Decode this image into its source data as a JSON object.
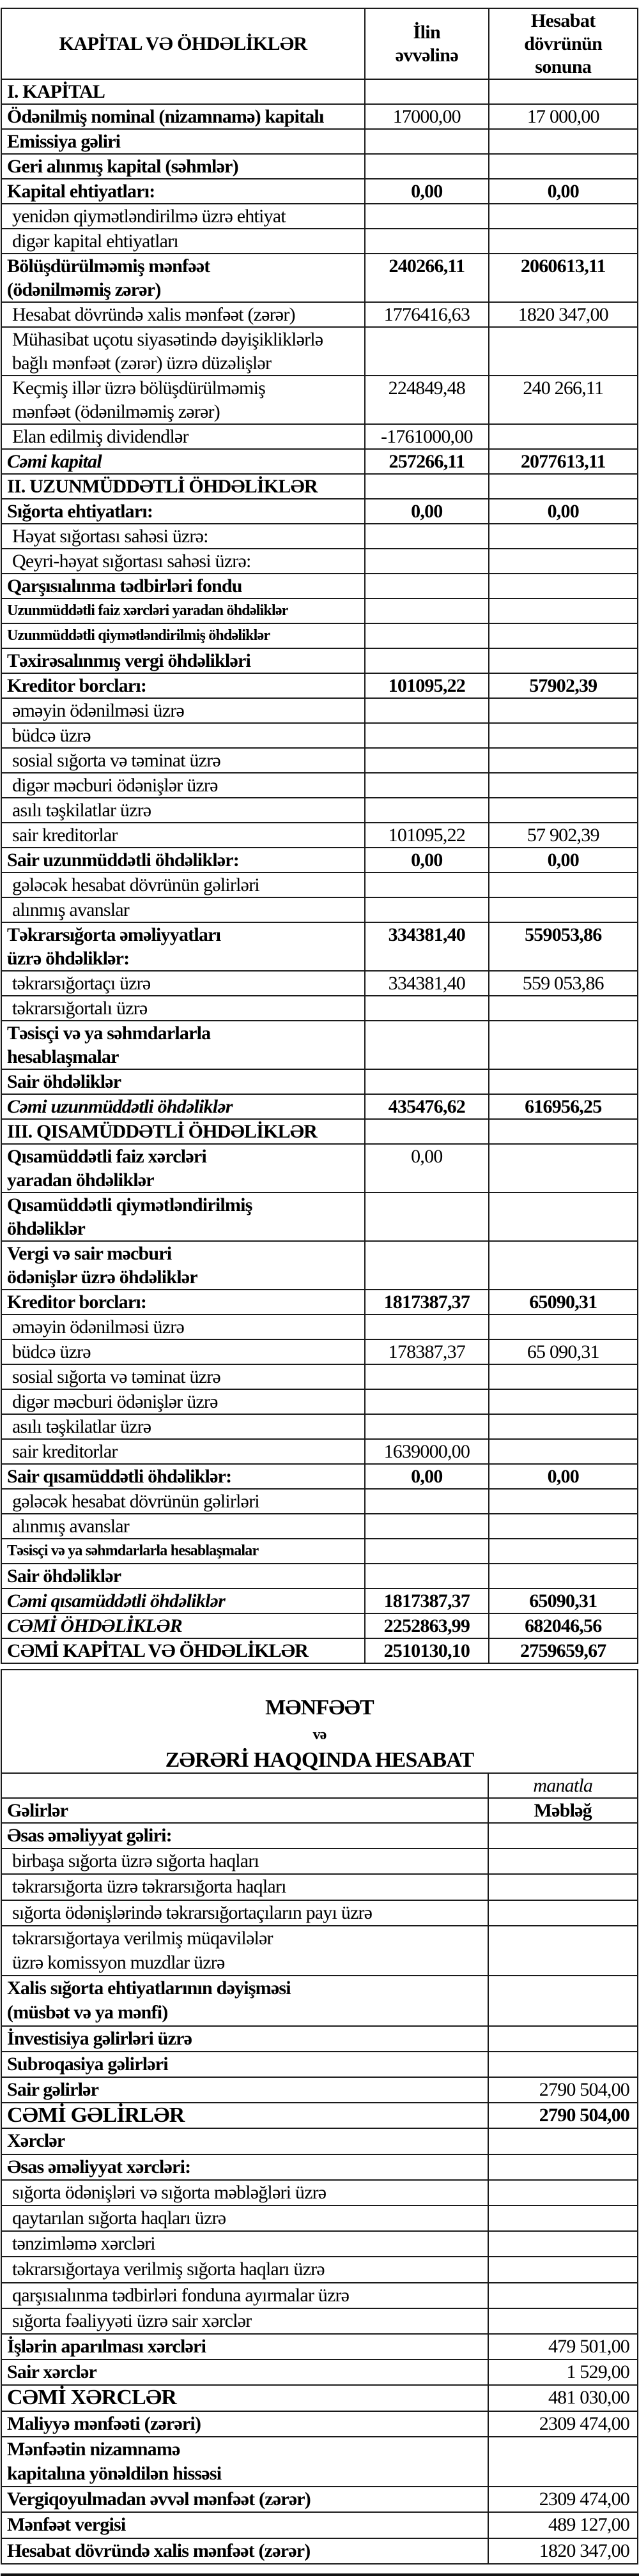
{
  "balance": {
    "header": {
      "title": "KAPİTAL VƏ ÖHDƏLİKLƏR",
      "col1": "İlin\nəvvəlinə",
      "col2": "Hesabat\ndövrünün\nsonuna"
    },
    "rows": [
      {
        "label": "I. KAPİTAL",
        "v1": "",
        "v2": "",
        "style": "section"
      },
      {
        "label": "Ödənilmiş nominal (nizamnamə) kapitalı",
        "v1": "17000,00",
        "v2": "17 000,00",
        "style": "bold-label"
      },
      {
        "label": "Emissiya gəliri",
        "v1": "",
        "v2": "",
        "style": "bold"
      },
      {
        "label": "Geri alınmış kapital (səhmlər)",
        "v1": "",
        "v2": "",
        "style": "bold"
      },
      {
        "label": "Kapital ehtiyatları:",
        "v1": "0,00",
        "v2": "0,00",
        "style": "bold"
      },
      {
        "label": "yenidən qiymətləndirilmə üzrə ehtiyat",
        "v1": "",
        "v2": "",
        "style": "sub"
      },
      {
        "label": "digər kapital ehtiyatları",
        "v1": "",
        "v2": "",
        "style": "sub"
      },
      {
        "label": "Bölüşdürülməmiş mənfəət\n(ödənilməmiş zərər)",
        "v1": "240266,11",
        "v2": "2060613,11",
        "style": "bold"
      },
      {
        "label": "Hesabat dövründə xalis mənfəət (zərər)",
        "v1": "1776416,63",
        "v2": "1820 347,00",
        "style": "sub"
      },
      {
        "label": "Mühasibat uçotu siyasətində dəyişikliklərlə\nbağlı mənfəət (zərər) üzrə düzəlişlər",
        "v1": "",
        "v2": "",
        "style": "sub"
      },
      {
        "label": "Keçmiş illər üzrə bölüşdürülməmiş\nmənfəət (ödənilməmiş zərər)",
        "v1": "224849,48",
        "v2": "240 266,11",
        "style": "sub"
      },
      {
        "label": "Elan edilmiş dividendlər",
        "v1": "-1761000,00",
        "v2": "",
        "style": "sub"
      },
      {
        "label": "Cəmi kapital",
        "v1": "257266,11",
        "v2": "2077613,11",
        "style": "italic"
      },
      {
        "label": "II. UZUNMÜDDƏTLİ ÖHDƏLİKLƏR",
        "v1": "",
        "v2": "",
        "style": "section"
      },
      {
        "label": "Sığorta ehtiyatları:",
        "v1": "0,00",
        "v2": "0,00",
        "style": "bold"
      },
      {
        "label": "Həyat sığortası sahəsi üzrə:",
        "v1": "",
        "v2": "",
        "style": "sub"
      },
      {
        "label": "Qeyri-həyat sığortası sahəsi üzrə:",
        "v1": "",
        "v2": "",
        "style": "sub"
      },
      {
        "label": "Qarşısıalınma tədbirləri fondu",
        "v1": "",
        "v2": "",
        "style": "bold"
      },
      {
        "label": "Uzunmüddətli faiz xərcləri yaradan öhdəliklər",
        "v1": "",
        "v2": "",
        "style": "bold small"
      },
      {
        "label": "Uzunmüddətli qiymətləndirilmiş öhdəliklər",
        "v1": "",
        "v2": "",
        "style": "bold small"
      },
      {
        "label": "Təxirəsalınmış vergi öhdəlikləri",
        "v1": "",
        "v2": "",
        "style": "bold"
      },
      {
        "label": "Kreditor borcları:",
        "v1": "101095,22",
        "v2": "57902,39",
        "style": "bold"
      },
      {
        "label": "əməyin ödənilməsi üzrə",
        "v1": "",
        "v2": "",
        "style": "sub"
      },
      {
        "label": "büdcə üzrə",
        "v1": "",
        "v2": "",
        "style": "sub"
      },
      {
        "label": "sosial sığorta və təminat üzrə",
        "v1": "",
        "v2": "",
        "style": "sub"
      },
      {
        "label": "digər məcburi ödənişlər üzrə",
        "v1": "",
        "v2": "",
        "style": "sub"
      },
      {
        "label": "asılı təşkilatlar üzrə",
        "v1": "",
        "v2": "",
        "style": "sub"
      },
      {
        "label": "sair kreditorlar",
        "v1": "101095,22",
        "v2": "57 902,39",
        "style": "sub"
      },
      {
        "label": "Sair uzunmüddətli öhdəliklər:",
        "v1": "0,00",
        "v2": "0,00",
        "style": "bold"
      },
      {
        "label": "gələcək hesabat dövrünün gəlirləri",
        "v1": "",
        "v2": "",
        "style": "sub"
      },
      {
        "label": "alınmış avanslar",
        "v1": "",
        "v2": "",
        "style": "sub"
      },
      {
        "label": "Təkrarsığorta əməliyyatları\n üzrə öhdəliklər:",
        "v1": "334381,40",
        "v2": "559053,86",
        "style": "bold"
      },
      {
        "label": "təkrarsığortaçı üzrə",
        "v1": "334381,40",
        "v2": "559 053,86",
        "style": "sub"
      },
      {
        "label": "təkrarsığortalı üzrə",
        "v1": "",
        "v2": "",
        "style": "sub"
      },
      {
        "label": "Təsisçi və ya səhmdarlarla\nhesablaşmalar",
        "v1": "",
        "v2": "",
        "style": "bold"
      },
      {
        "label": "Sair öhdəliklər",
        "v1": "",
        "v2": "",
        "style": "bold"
      },
      {
        "label": "Cəmi uzunmüddətli öhdəliklər",
        "v1": "435476,62",
        "v2": "616956,25",
        "style": "italic"
      },
      {
        "label": "III. QISAMÜDDƏTLİ ÖHDƏLİKLƏR",
        "v1": "",
        "v2": "",
        "style": "section"
      },
      {
        "label": "Qısamüddətli faiz xərcləri\n yaradan öhdəliklər",
        "v1": "0,00",
        "v2": "",
        "style": "bold-label"
      },
      {
        "label": "Qısamüddətli qiymətləndirilmiş\nöhdəliklər",
        "v1": "",
        "v2": "",
        "style": "bold"
      },
      {
        "label": "Vergi və sair məcburi\nödənişlər üzrə öhdəliklər",
        "v1": "",
        "v2": "",
        "style": "bold"
      },
      {
        "label": "Kreditor borcları:",
        "v1": "1817387,37",
        "v2": "65090,31",
        "style": "bold"
      },
      {
        "label": "əməyin ödənilməsi üzrə",
        "v1": "",
        "v2": "",
        "style": "sub"
      },
      {
        "label": "büdcə üzrə",
        "v1": "178387,37",
        "v2": "65 090,31",
        "style": "sub"
      },
      {
        "label": "sosial sığorta və təminat üzrə",
        "v1": "",
        "v2": "",
        "style": "sub"
      },
      {
        "label": "digər məcburi ödənişlər üzrə",
        "v1": "",
        "v2": "",
        "style": "sub"
      },
      {
        "label": "asılı təşkilatlar üzrə",
        "v1": "",
        "v2": "",
        "style": "sub"
      },
      {
        "label": "sair kreditorlar",
        "v1": "1639000,00",
        "v2": "",
        "style": "sub"
      },
      {
        "label": "Sair qısamüddətli öhdəliklər:",
        "v1": "0,00",
        "v2": "0,00",
        "style": "bold"
      },
      {
        "label": "gələcək hesabat dövrünün gəlirləri",
        "v1": "",
        "v2": "",
        "style": "sub"
      },
      {
        "label": "alınmış avanslar",
        "v1": "",
        "v2": "",
        "style": "sub"
      },
      {
        "label": "Təsisçi və ya səhmdarlarla hesablaşmalar",
        "v1": "",
        "v2": "",
        "style": "bold small"
      },
      {
        "label": "Sair öhdəliklər",
        "v1": "",
        "v2": "",
        "style": "bold"
      },
      {
        "label": "Cəmi qısamüddətli öhdəliklər",
        "v1": "1817387,37",
        "v2": "65090,31",
        "style": "italic"
      },
      {
        "label": "CƏMİ ÖHDƏLİKLƏR",
        "v1": "2252863,99",
        "v2": "682046,56",
        "style": "italic"
      },
      {
        "label": "CƏMİ KAPİTAL VƏ ÖHDƏLİKLƏR",
        "v1": "2510130,10",
        "v2": "2759659,67",
        "style": "bold"
      }
    ]
  },
  "income": {
    "title_main": "MƏNFƏƏT",
    "title_and": "və",
    "title_rest": "ZƏRƏRİ HAQQINDA HESABAT",
    "unit": "manatla",
    "col_label": "Gəlirlər",
    "col_amount": "Məbləğ",
    "rows": [
      {
        "label": "Əsas əməliyyat gəliri:",
        "value": "",
        "style": "bold"
      },
      {
        "label": "birbaşa sığorta üzrə sığorta haqları",
        "value": "",
        "style": "sub"
      },
      {
        "label": "təkrarsığorta üzrə təkrarsığorta haqları",
        "value": "",
        "style": "sub"
      },
      {
        "label": "sığorta ödənişlərində təkrarsığortaçıların payı üzrə",
        "value": "",
        "style": "sub"
      },
      {
        "label": "təkrarsığortaya verilmiş müqavilələr\nüzrə komissyon muzdlar üzrə",
        "value": "",
        "style": "sub"
      },
      {
        "label": "Xalis sığorta ehtiyatlarının dəyişməsi\n (müsbət və ya mənfi)",
        "value": "",
        "style": "bold"
      },
      {
        "label": "İnvestisiya gəlirləri üzrə",
        "value": "",
        "style": "bold"
      },
      {
        "label": "Subroqasiya gəlirləri",
        "value": "",
        "style": "bold"
      },
      {
        "label": "Sair gəlirlər",
        "value": "2790 504,00",
        "style": "bold-label"
      },
      {
        "label": "CƏMİ GƏLİRLƏR",
        "value": "2790 504,00",
        "style": "big"
      },
      {
        "label": "Xərclər",
        "value": "",
        "style": "bold"
      },
      {
        "label": "Əsas əməliyyat xərcləri:",
        "value": "",
        "style": "bold"
      },
      {
        "label": "sığorta ödənişləri və sığorta məbləğləri üzrə",
        "value": "",
        "style": "sub"
      },
      {
        "label": "qaytarılan sığorta haqları üzrə",
        "value": "",
        "style": "sub"
      },
      {
        "label": "tənzimləmə xərcləri",
        "value": "",
        "style": "sub"
      },
      {
        "label": "təkrarsığortaya verilmiş sığorta haqları üzrə",
        "value": "",
        "style": "sub"
      },
      {
        "label": "qarşısıalınma tədbirləri fonduna ayırmalar üzrə",
        "value": "",
        "style": "sub"
      },
      {
        "label": "sığorta fəaliyyəti üzrə sair xərclər",
        "value": "",
        "style": "sub"
      },
      {
        "label": "İşlərin aparılması xərcləri",
        "value": "479 501,00",
        "style": "bold-label"
      },
      {
        "label": "Sair xərclər",
        "value": "1 529,00",
        "style": "bold-label"
      },
      {
        "label": "CƏMİ XƏRCLƏR",
        "value": "481 030,00",
        "style": "plain-total"
      },
      {
        "label": "Maliyyə mənfəəti (zərəri)",
        "value": "2309 474,00",
        "style": "bold-label"
      },
      {
        "label": "Mənfəətin nizamnamə\nkapitalına yönəldilən hissəsi",
        "value": "",
        "style": "bold"
      },
      {
        "label": "Vergiqoyulmadan əvvəl mənfəət (zərər)",
        "value": "2309 474,00",
        "style": "bold-label"
      },
      {
        "label": "Mənfəət vergisi",
        "value": "489 127,00",
        "style": "bold-label"
      },
      {
        "label": "Hesabat dövründə xalis mənfəət (zərər)",
        "value": "1820 347,00",
        "style": "bold-label"
      }
    ]
  }
}
